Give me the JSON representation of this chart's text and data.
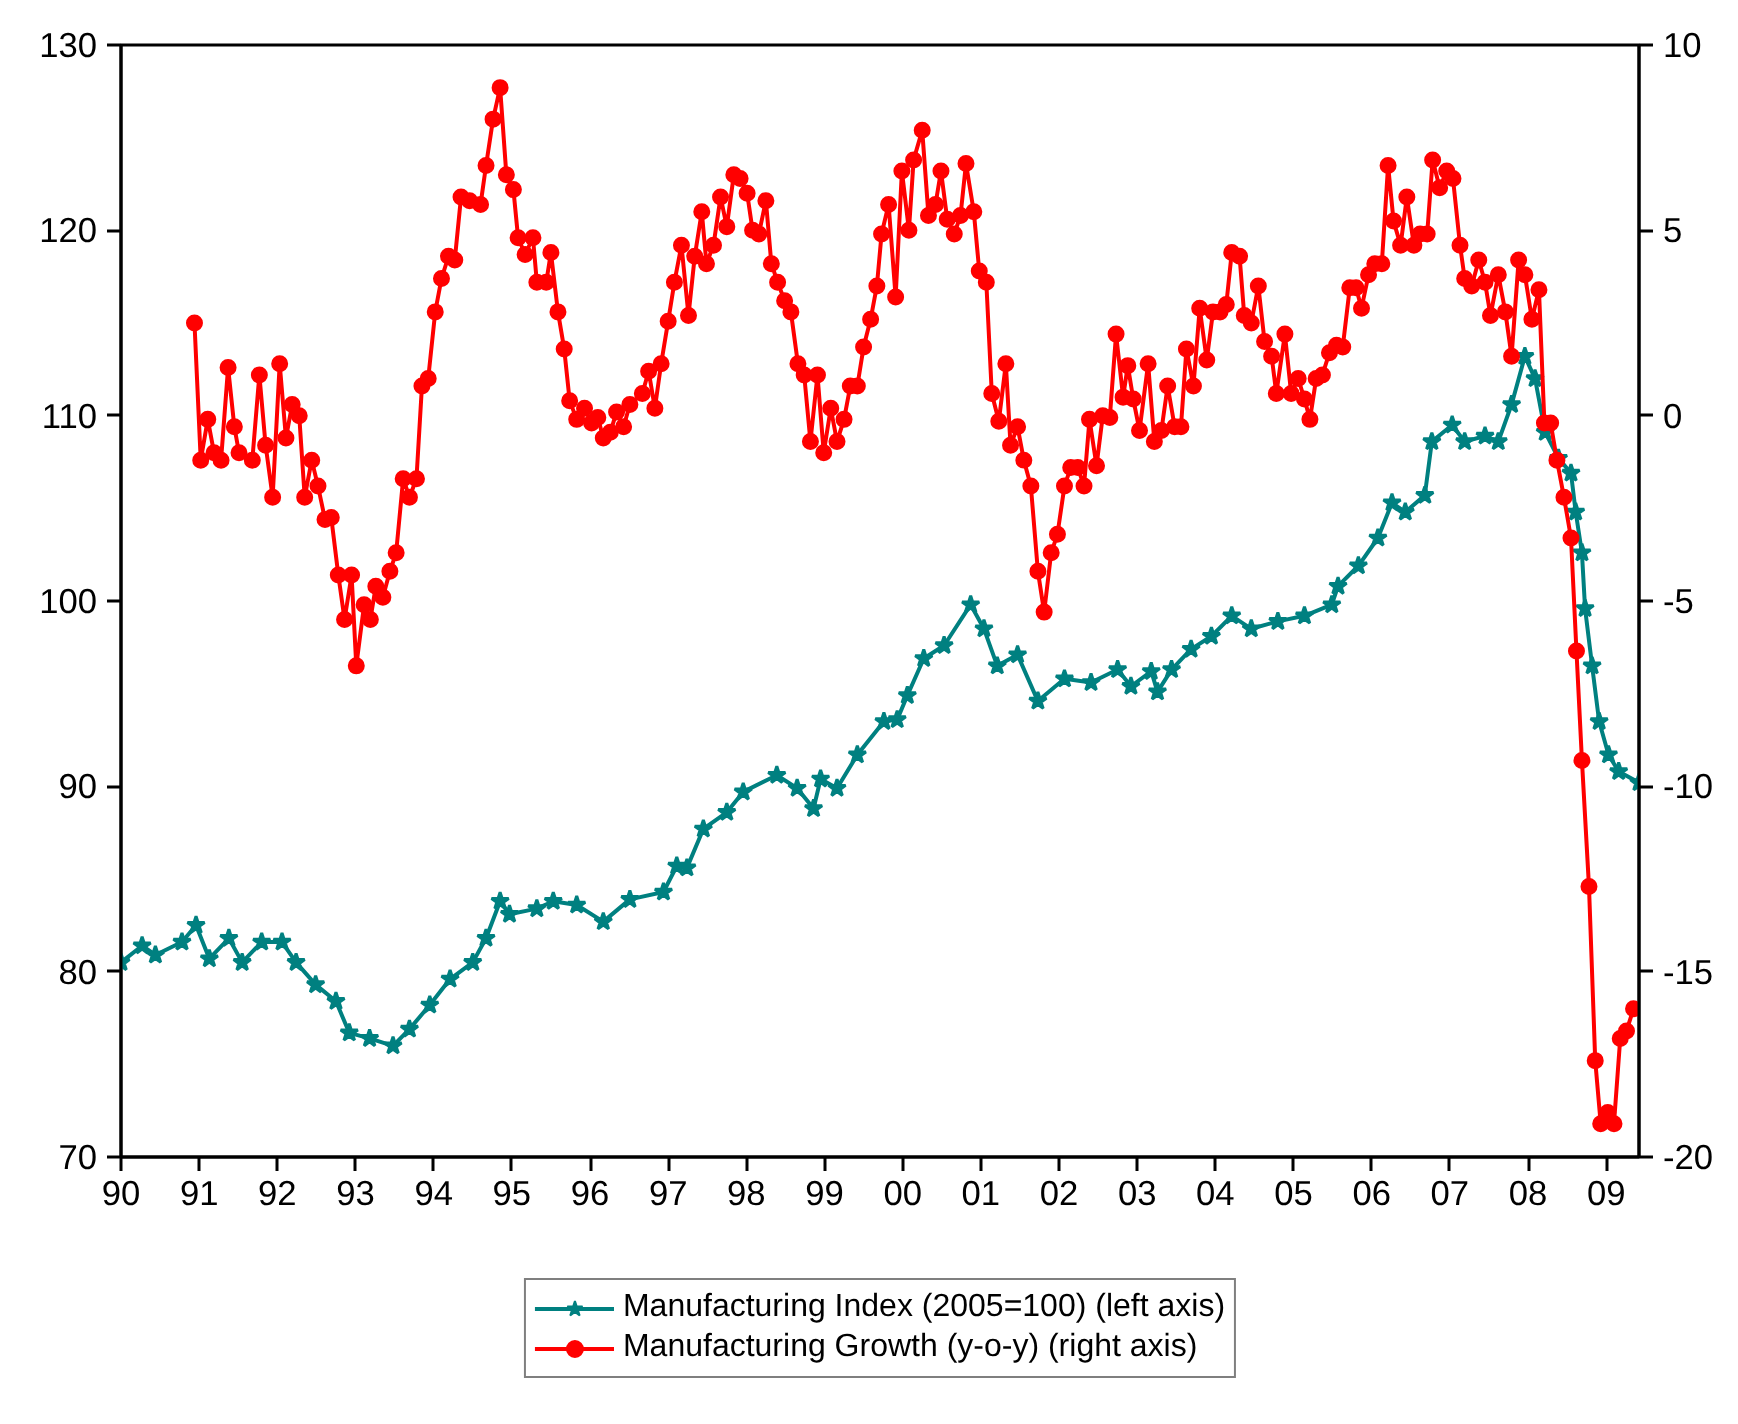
{
  "chart_data": {
    "type": "line",
    "xlim": [
      1990,
      2009.42
    ],
    "xticks": [
      {
        "value": 1990,
        "label": "90"
      },
      {
        "value": 1991,
        "label": "91"
      },
      {
        "value": 1992,
        "label": "92"
      },
      {
        "value": 1993,
        "label": "93"
      },
      {
        "value": 1994,
        "label": "94"
      },
      {
        "value": 1995,
        "label": "95"
      },
      {
        "value": 1996,
        "label": "96"
      },
      {
        "value": 1997,
        "label": "97"
      },
      {
        "value": 1998,
        "label": "98"
      },
      {
        "value": 1999,
        "label": "99"
      },
      {
        "value": 2000,
        "label": "00"
      },
      {
        "value": 2001,
        "label": "01"
      },
      {
        "value": 2002,
        "label": "02"
      },
      {
        "value": 2003,
        "label": "03"
      },
      {
        "value": 2004,
        "label": "04"
      },
      {
        "value": 2005,
        "label": "05"
      },
      {
        "value": 2006,
        "label": "06"
      },
      {
        "value": 2007,
        "label": "07"
      },
      {
        "value": 2008,
        "label": "08"
      },
      {
        "value": 2009,
        "label": "09"
      }
    ],
    "ylim": [
      70,
      130
    ],
    "yticks": [
      70,
      80,
      90,
      100,
      110,
      120,
      130
    ],
    "y2lim": [
      -20,
      10
    ],
    "y2ticks": [
      -20,
      -15,
      -10,
      -5,
      0,
      5,
      10
    ],
    "grid": false,
    "legend": "bottom",
    "line_style": "solid",
    "series": [
      {
        "name": "Manufacturing Index (2005=100) (left axis)",
        "color": "#008080",
        "marker": "star",
        "axis": "y",
        "x": [
          1990.0,
          1990.27,
          1990.44,
          1990.78,
          1990.96,
          1991.13,
          1991.38,
          1991.55,
          1991.8,
          1992.06,
          1992.24,
          1992.49,
          1992.75,
          1992.92,
          1993.18,
          1993.48,
          1993.69,
          1993.95,
          1994.21,
          1994.5,
          1994.67,
          1994.85,
          1994.97,
          1995.32,
          1995.53,
          1995.83,
          1996.17,
          1996.51,
          1996.94,
          1997.11,
          1997.24,
          1997.45,
          1997.75,
          1997.96,
          1998.39,
          1998.65,
          1998.86,
          1998.95,
          1999.16,
          1999.42,
          1999.76,
          1999.93,
          2000.06,
          2000.27,
          2000.53,
          2000.87,
          2001.04,
          2001.21,
          2001.47,
          2001.73,
          2002.07,
          2002.41,
          2002.75,
          2002.92,
          2003.18,
          2003.26,
          2003.44,
          2003.69,
          2003.95,
          2004.21,
          2004.46,
          2004.8,
          2005.14,
          2005.49,
          2005.57,
          2005.83,
          2006.08,
          2006.26,
          2006.43,
          2006.68,
          2006.77,
          2007.03,
          2007.19,
          2007.45,
          2007.62,
          2007.79,
          2007.96,
          2008.09,
          2008.22,
          2008.39,
          2008.55,
          2008.61,
          2008.69,
          2008.73,
          2008.82,
          2008.91,
          2009.03,
          2009.16,
          2009.42
        ],
        "values": [
          80.5,
          81.4,
          80.9,
          81.6,
          82.5,
          80.7,
          81.8,
          80.5,
          81.6,
          81.6,
          80.5,
          79.3,
          78.4,
          76.7,
          76.4,
          76.0,
          76.9,
          78.2,
          79.6,
          80.5,
          81.8,
          83.8,
          83.1,
          83.4,
          83.8,
          83.6,
          82.7,
          83.9,
          84.3,
          85.7,
          85.6,
          87.7,
          88.6,
          89.7,
          90.6,
          89.9,
          88.8,
          90.4,
          89.9,
          91.7,
          93.5,
          93.6,
          94.9,
          96.9,
          97.6,
          99.8,
          98.5,
          96.5,
          97.1,
          94.6,
          95.8,
          95.6,
          96.3,
          95.4,
          96.2,
          95.1,
          96.3,
          97.4,
          98.1,
          99.2,
          98.5,
          98.9,
          99.2,
          99.8,
          100.8,
          101.9,
          103.4,
          105.3,
          104.8,
          105.7,
          108.6,
          109.5,
          108.6,
          108.9,
          108.6,
          110.6,
          113.2,
          112.0,
          109.1,
          107.7,
          106.9,
          104.8,
          102.6,
          99.6,
          96.5,
          93.5,
          91.7,
          90.8,
          90.2
        ]
      },
      {
        "name": "Manufacturing Growth (y-o-y) (right axis)",
        "color": "#ff0000",
        "marker": "circle",
        "axis": "y2",
        "x": [
          1990.94,
          1991.02,
          1991.11,
          1991.19,
          1991.28,
          1991.37,
          1991.45,
          1991.51,
          1991.68,
          1991.77,
          1991.85,
          1991.94,
          1992.03,
          1992.11,
          1992.19,
          1992.28,
          1992.35,
          1992.44,
          1992.52,
          1992.61,
          1992.69,
          1992.78,
          1992.86,
          1992.95,
          1993.01,
          1993.11,
          1993.19,
          1993.26,
          1993.35,
          1993.44,
          1993.52,
          1993.61,
          1993.69,
          1993.78,
          1993.85,
          1993.93,
          1994.02,
          1994.1,
          1994.19,
          1994.27,
          1994.35,
          1994.46,
          1994.6,
          1994.67,
          1994.76,
          1994.85,
          1994.93,
          1995.02,
          1995.08,
          1995.17,
          1995.27,
          1995.32,
          1995.44,
          1995.5,
          1995.59,
          1995.67,
          1995.74,
          1995.83,
          1995.93,
          1996.02,
          1996.1,
          1996.17,
          1996.26,
          1996.34,
          1996.43,
          1996.51,
          1996.67,
          1996.75,
          1996.83,
          1996.91,
          1997.0,
          1997.08,
          1997.17,
          1997.26,
          1997.34,
          1997.43,
          1997.49,
          1997.58,
          1997.67,
          1997.75,
          1997.84,
          1997.92,
          1998.01,
          1998.08,
          1998.16,
          1998.25,
          1998.32,
          1998.4,
          1998.49,
          1998.57,
          1998.66,
          1998.74,
          1998.82,
          1998.91,
          1998.99,
          1999.08,
          1999.16,
          1999.25,
          1999.33,
          1999.42,
          1999.5,
          1999.59,
          1999.67,
          1999.73,
          1999.82,
          1999.91,
          1999.99,
          2000.08,
          2000.14,
          2000.25,
          2000.33,
          2000.42,
          2000.49,
          2000.57,
          2000.66,
          2000.74,
          2000.81,
          2000.91,
          2000.98,
          2001.07,
          2001.14,
          2001.23,
          2001.32,
          2001.38,
          2001.47,
          2001.55,
          2001.64,
          2001.73,
          2001.81,
          2001.9,
          2001.98,
          2002.07,
          2002.15,
          2002.24,
          2002.32,
          2002.39,
          2002.48,
          2002.56,
          2002.65,
          2002.73,
          2002.82,
          2002.88,
          2002.95,
          2003.03,
          2003.14,
          2003.22,
          2003.31,
          2003.39,
          2003.48,
          2003.56,
          2003.63,
          2003.72,
          2003.8,
          2003.89,
          2003.97,
          2004.06,
          2004.14,
          2004.21,
          2004.31,
          2004.37,
          2004.46,
          2004.55,
          2004.63,
          2004.72,
          2004.78,
          2004.89,
          2004.97,
          2005.06,
          2005.14,
          2005.21,
          2005.29,
          2005.37,
          2005.46,
          2005.55,
          2005.63,
          2005.72,
          2005.8,
          2005.87,
          2005.96,
          2006.04,
          2006.13,
          2006.21,
          2006.28,
          2006.37,
          2006.45,
          2006.54,
          2006.62,
          2006.71,
          2006.78,
          2006.87,
          2006.96,
          2007.04,
          2007.13,
          2007.19,
          2007.28,
          2007.37,
          2007.45,
          2007.52,
          2007.62,
          2007.71,
          2007.79,
          2007.88,
          2007.96,
          2008.05,
          2008.14,
          2008.21,
          2008.29,
          2008.37,
          2008.46,
          2008.55,
          2008.62,
          2008.69,
          2008.78,
          2008.86,
          2008.93,
          2009.02,
          2009.1,
          2009.18,
          2009.26,
          2009.35
        ],
        "values": [
          2.5,
          -1.2,
          -0.1,
          -1.0,
          -1.2,
          1.3,
          -0.3,
          -1.0,
          -1.2,
          1.1,
          -0.8,
          -2.2,
          1.4,
          -0.6,
          0.3,
          0.0,
          -2.2,
          -1.2,
          -1.9,
          -2.8,
          -2.75,
          -4.3,
          -5.5,
          -4.3,
          -6.75,
          -5.1,
          -5.5,
          -4.6,
          -4.9,
          -4.2,
          -3.7,
          -1.7,
          -2.2,
          -1.7,
          0.8,
          1.0,
          2.8,
          3.7,
          4.3,
          4.2,
          5.9,
          5.8,
          5.7,
          6.75,
          8.0,
          8.85,
          6.5,
          6.1,
          4.8,
          4.35,
          4.8,
          3.6,
          3.6,
          4.4,
          2.8,
          1.8,
          0.4,
          -0.1,
          0.2,
          -0.2,
          -0.05,
          -0.6,
          -0.45,
          0.1,
          -0.3,
          0.3,
          0.6,
          1.2,
          0.2,
          1.4,
          2.55,
          3.6,
          4.6,
          2.7,
          4.3,
          5.5,
          4.1,
          4.6,
          5.9,
          5.1,
          6.5,
          6.4,
          6.0,
          5.0,
          4.9,
          5.8,
          4.1,
          3.6,
          3.1,
          2.8,
          1.4,
          1.1,
          -0.7,
          1.1,
          -1.0,
          0.2,
          -0.7,
          -0.1,
          0.8,
          0.8,
          1.85,
          2.6,
          3.5,
          4.9,
          5.7,
          3.2,
          6.6,
          5.0,
          6.9,
          7.7,
          5.4,
          5.7,
          6.6,
          5.3,
          4.9,
          5.4,
          6.8,
          5.5,
          3.9,
          3.6,
          0.6,
          -0.15,
          1.4,
          -0.8,
          -0.3,
          -1.2,
          -1.9,
          -4.2,
          -5.3,
          -3.7,
          -3.2,
          -1.9,
          -1.4,
          -1.4,
          -1.9,
          -0.1,
          -1.35,
          0.0,
          -0.05,
          2.2,
          0.5,
          1.35,
          0.45,
          -0.4,
          1.4,
          -0.7,
          -0.4,
          0.8,
          -0.3,
          -0.3,
          1.8,
          0.8,
          2.9,
          1.5,
          2.8,
          2.8,
          3.0,
          4.4,
          4.3,
          2.7,
          2.5,
          3.5,
          2.0,
          1.6,
          0.6,
          2.2,
          0.6,
          1.0,
          0.45,
          -0.1,
          1.0,
          1.1,
          1.7,
          1.9,
          1.85,
          3.45,
          3.45,
          2.9,
          3.8,
          4.1,
          4.1,
          6.75,
          5.25,
          4.6,
          5.9,
          4.6,
          4.9,
          4.9,
          6.9,
          6.15,
          6.6,
          6.4,
          4.6,
          3.7,
          3.5,
          4.2,
          3.6,
          2.7,
          3.8,
          2.8,
          1.6,
          4.2,
          3.8,
          2.6,
          3.4,
          -0.2,
          -0.2,
          -1.2,
          -2.2,
          -3.3,
          -6.35,
          -9.3,
          -12.7,
          -17.4,
          -19.1,
          -18.8,
          -19.1,
          -16.8,
          -16.6,
          -16.0
        ]
      }
    ]
  }
}
